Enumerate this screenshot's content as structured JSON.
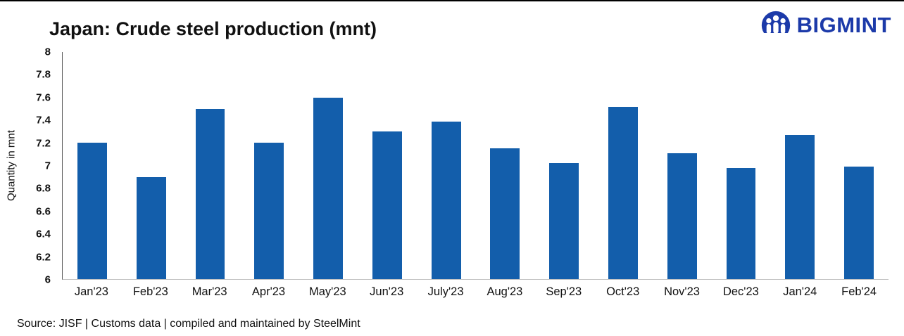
{
  "title": "Japan: Crude steel production (mnt)",
  "logo": {
    "text": "BIGMINT",
    "color": "#1c3aa9"
  },
  "source": "Source: JISF | Customs data | compiled and maintained by SteelMint",
  "chart_data": {
    "type": "bar",
    "categories": [
      "Jan'23",
      "Feb'23",
      "Mar'23",
      "Apr'23",
      "May'23",
      "Jun'23",
      "July'23",
      "Aug'23",
      "Sep'23",
      "Oct'23",
      "Nov'23",
      "Dec'23",
      "Jan'24",
      "Feb'24"
    ],
    "values": [
      7.2,
      6.9,
      7.5,
      7.2,
      7.6,
      7.3,
      7.39,
      7.15,
      7.02,
      7.52,
      7.11,
      6.98,
      7.27,
      6.99
    ],
    "title": "Japan: Crude steel production (mnt)",
    "xlabel": "",
    "ylabel": "Quantity in mnt",
    "ylim": [
      6,
      8
    ],
    "y_ticks": [
      "8",
      "7.8",
      "7.6",
      "7.4",
      "7.2",
      "7",
      "6.8",
      "6.6",
      "6.4",
      "6.2",
      "6"
    ],
    "bar_color": "#135eab",
    "grid": false,
    "legend": false
  }
}
